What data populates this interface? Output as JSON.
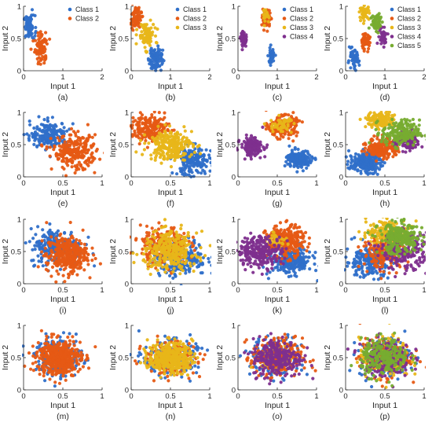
{
  "colors": {
    "Class 1": "#2f6fc9",
    "Class 2": "#e65a14",
    "Class 3": "#e8b619",
    "Class 4": "#7e2f8e",
    "Class 5": "#77ac30"
  },
  "chart_data": [
    {
      "type": "scatter",
      "caption": "(a)",
      "xlabel": "Input 1",
      "ylabel": "Input 2",
      "xlim": [
        0,
        2
      ],
      "ylim": [
        0,
        1
      ],
      "xticks": [
        "0",
        "1",
        "2"
      ],
      "yticks": [
        "0",
        "0.5",
        "1"
      ],
      "legend": "top-right",
      "series": [
        {
          "name": "Class 1",
          "center": [
            0.15,
            0.68
          ],
          "spread": [
            0.07,
            0.09
          ],
          "n": 80
        },
        {
          "name": "Class 2",
          "center": [
            0.45,
            0.35
          ],
          "spread": [
            0.08,
            0.12
          ],
          "n": 90
        }
      ]
    },
    {
      "type": "scatter",
      "caption": "(b)",
      "xlabel": "Input 1",
      "ylabel": "Input 2",
      "xlim": [
        0,
        2
      ],
      "ylim": [
        0,
        1
      ],
      "xticks": [
        "0",
        "1",
        "2"
      ],
      "yticks": [
        "0",
        "0.5",
        "1"
      ],
      "legend": "top-right",
      "series": [
        {
          "name": "Class 1",
          "center": [
            0.62,
            0.2
          ],
          "spread": [
            0.09,
            0.1
          ],
          "n": 90
        },
        {
          "name": "Class 2",
          "center": [
            0.12,
            0.82
          ],
          "spread": [
            0.07,
            0.08
          ],
          "n": 80
        },
        {
          "name": "Class 3",
          "center": [
            0.38,
            0.55
          ],
          "spread": [
            0.1,
            0.1
          ],
          "n": 90
        }
      ]
    },
    {
      "type": "scatter",
      "caption": "(c)",
      "xlabel": "Input 1",
      "ylabel": "Input 2",
      "xlim": [
        0,
        2
      ],
      "ylim": [
        0,
        1
      ],
      "xticks": [
        "0",
        "1",
        "2"
      ],
      "yticks": [
        "0",
        "0.5",
        "1"
      ],
      "legend": "top-right",
      "series": [
        {
          "name": "Class 1",
          "center": [
            0.85,
            0.22
          ],
          "spread": [
            0.04,
            0.06
          ],
          "n": 50
        },
        {
          "name": "Class 2",
          "center": [
            0.72,
            0.8
          ],
          "spread": [
            0.05,
            0.07
          ],
          "n": 60
        },
        {
          "name": "Class 3",
          "center": [
            0.72,
            0.85
          ],
          "spread": [
            0.04,
            0.05
          ],
          "n": 20
        },
        {
          "name": "Class 4",
          "center": [
            0.15,
            0.48
          ],
          "spread": [
            0.04,
            0.06
          ],
          "n": 50
        }
      ]
    },
    {
      "type": "scatter",
      "caption": "(d)",
      "xlabel": "Input 1",
      "ylabel": "Input 2",
      "xlim": [
        0,
        2
      ],
      "ylim": [
        0,
        1
      ],
      "xticks": [
        "0",
        "1",
        "2"
      ],
      "yticks": [
        "0",
        "0.5",
        "1"
      ],
      "legend": "top-right",
      "series": [
        {
          "name": "Class 1",
          "center": [
            0.2,
            0.17
          ],
          "spread": [
            0.07,
            0.07
          ],
          "n": 60
        },
        {
          "name": "Class 2",
          "center": [
            0.5,
            0.45
          ],
          "spread": [
            0.06,
            0.06
          ],
          "n": 60
        },
        {
          "name": "Class 3",
          "center": [
            0.48,
            0.9
          ],
          "spread": [
            0.06,
            0.05
          ],
          "n": 50
        },
        {
          "name": "Class 4",
          "center": [
            0.95,
            0.55
          ],
          "spread": [
            0.06,
            0.07
          ],
          "n": 40
        },
        {
          "name": "Class 5",
          "center": [
            0.8,
            0.75
          ],
          "spread": [
            0.08,
            0.08
          ],
          "n": 60
        }
      ]
    },
    {
      "type": "scatter",
      "caption": "(e)",
      "xlabel": "Input 1",
      "ylabel": "Input 2",
      "xlim": [
        0,
        1
      ],
      "ylim": [
        0,
        1
      ],
      "xticks": [
        "0",
        "0.5",
        "1"
      ],
      "yticks": [
        "0",
        "0.5",
        "1"
      ],
      "series": [
        {
          "name": "Class 1",
          "center": [
            0.33,
            0.65
          ],
          "spread": [
            0.12,
            0.1
          ],
          "n": 200
        },
        {
          "name": "Class 2",
          "center": [
            0.65,
            0.38
          ],
          "spread": [
            0.14,
            0.13
          ],
          "n": 250
        }
      ]
    },
    {
      "type": "scatter",
      "caption": "(f)",
      "xlabel": "Input 1",
      "ylabel": "Input 2",
      "xlim": [
        0,
        1
      ],
      "ylim": [
        0,
        1
      ],
      "xticks": [
        "0",
        "0.5",
        "1"
      ],
      "yticks": [
        "0",
        "0.5",
        "1"
      ],
      "series": [
        {
          "name": "Class 1",
          "center": [
            0.78,
            0.25
          ],
          "spread": [
            0.12,
            0.11
          ],
          "n": 200
        },
        {
          "name": "Class 2",
          "center": [
            0.25,
            0.75
          ],
          "spread": [
            0.12,
            0.1
          ],
          "n": 200
        },
        {
          "name": "Class 3",
          "center": [
            0.5,
            0.5
          ],
          "spread": [
            0.14,
            0.12
          ],
          "n": 250
        }
      ]
    },
    {
      "type": "scatter",
      "caption": "(g)",
      "xlabel": "Input 1",
      "ylabel": "Input 2",
      "xlim": [
        0,
        1
      ],
      "ylim": [
        0,
        1
      ],
      "xticks": [
        "0",
        "0.5",
        "1"
      ],
      "yticks": [
        "0",
        "0.5",
        "1"
      ],
      "series": [
        {
          "name": "Class 1",
          "center": [
            0.78,
            0.27
          ],
          "spread": [
            0.08,
            0.07
          ],
          "n": 180
        },
        {
          "name": "Class 2",
          "center": [
            0.57,
            0.78
          ],
          "spread": [
            0.09,
            0.08
          ],
          "n": 200
        },
        {
          "name": "Class 3",
          "center": [
            0.55,
            0.8
          ],
          "spread": [
            0.07,
            0.06
          ],
          "n": 50
        },
        {
          "name": "Class 4",
          "center": [
            0.18,
            0.47
          ],
          "spread": [
            0.07,
            0.07
          ],
          "n": 150
        }
      ]
    },
    {
      "type": "scatter",
      "caption": "(h)",
      "xlabel": "Input 1",
      "ylabel": "Input 2",
      "xlim": [
        0,
        1
      ],
      "ylim": [
        0,
        1
      ],
      "xticks": [
        "0",
        "0.5",
        "1"
      ],
      "yticks": [
        "0",
        "0.5",
        "1"
      ],
      "series": [
        {
          "name": "Class 1",
          "center": [
            0.25,
            0.22
          ],
          "spread": [
            0.1,
            0.08
          ],
          "n": 200
        },
        {
          "name": "Class 2",
          "center": [
            0.48,
            0.45
          ],
          "spread": [
            0.1,
            0.08
          ],
          "n": 200
        },
        {
          "name": "Class 3",
          "center": [
            0.45,
            0.88
          ],
          "spread": [
            0.09,
            0.06
          ],
          "n": 150
        },
        {
          "name": "Class 4",
          "center": [
            0.8,
            0.55
          ],
          "spread": [
            0.08,
            0.08
          ],
          "n": 120
        },
        {
          "name": "Class 5",
          "center": [
            0.7,
            0.68
          ],
          "spread": [
            0.12,
            0.1
          ],
          "n": 200
        }
      ]
    },
    {
      "type": "scatter",
      "caption": "(i)",
      "xlabel": "Input 1",
      "ylabel": "Input 2",
      "xlim": [
        0,
        1
      ],
      "ylim": [
        0,
        1
      ],
      "xticks": [
        "0",
        "0.5",
        "1"
      ],
      "yticks": [
        "0",
        "0.5",
        "1"
      ],
      "series": [
        {
          "name": "Class 1",
          "center": [
            0.42,
            0.58
          ],
          "spread": [
            0.17,
            0.14
          ],
          "n": 250
        },
        {
          "name": "Class 2",
          "center": [
            0.55,
            0.45
          ],
          "spread": [
            0.13,
            0.14
          ],
          "n": 350
        }
      ]
    },
    {
      "type": "scatter",
      "caption": "(j)",
      "xlabel": "Input 1",
      "ylabel": "Input 2",
      "xlim": [
        0,
        1
      ],
      "ylim": [
        0,
        1
      ],
      "xticks": [
        "0",
        "0.5",
        "1"
      ],
      "yticks": [
        "0",
        "0.5",
        "1"
      ],
      "series": [
        {
          "name": "Class 1",
          "center": [
            0.62,
            0.4
          ],
          "spread": [
            0.17,
            0.14
          ],
          "n": 250
        },
        {
          "name": "Class 2",
          "center": [
            0.42,
            0.6
          ],
          "spread": [
            0.15,
            0.14
          ],
          "n": 250
        },
        {
          "name": "Class 3",
          "center": [
            0.5,
            0.5
          ],
          "spread": [
            0.17,
            0.15
          ],
          "n": 300
        }
      ]
    },
    {
      "type": "scatter",
      "caption": "(k)",
      "xlabel": "Input 1",
      "ylabel": "Input 2",
      "xlim": [
        0,
        1
      ],
      "ylim": [
        0,
        1
      ],
      "xticks": [
        "0",
        "0.5",
        "1"
      ],
      "yticks": [
        "0",
        "0.5",
        "1"
      ],
      "series": [
        {
          "name": "Class 1",
          "center": [
            0.68,
            0.35
          ],
          "spread": [
            0.13,
            0.1
          ],
          "n": 250
        },
        {
          "name": "Class 2",
          "center": [
            0.6,
            0.65
          ],
          "spread": [
            0.12,
            0.12
          ],
          "n": 300
        },
        {
          "name": "Class 3",
          "center": [
            0.5,
            0.7
          ],
          "spread": [
            0.06,
            0.06
          ],
          "n": 30
        },
        {
          "name": "Class 4",
          "center": [
            0.28,
            0.5
          ],
          "spread": [
            0.14,
            0.12
          ],
          "n": 250
        }
      ]
    },
    {
      "type": "scatter",
      "caption": "(l)",
      "xlabel": "Input 1",
      "ylabel": "Input 2",
      "xlim": [
        0,
        1
      ],
      "ylim": [
        0,
        1
      ],
      "xticks": [
        "0",
        "0.5",
        "1"
      ],
      "yticks": [
        "0",
        "0.5",
        "1"
      ],
      "series": [
        {
          "name": "Class 1",
          "center": [
            0.3,
            0.35
          ],
          "spread": [
            0.15,
            0.12
          ],
          "n": 220
        },
        {
          "name": "Class 2",
          "center": [
            0.5,
            0.48
          ],
          "spread": [
            0.14,
            0.12
          ],
          "n": 220
        },
        {
          "name": "Class 3",
          "center": [
            0.55,
            0.8
          ],
          "spread": [
            0.14,
            0.1
          ],
          "n": 200
        },
        {
          "name": "Class 4",
          "center": [
            0.75,
            0.5
          ],
          "spread": [
            0.15,
            0.14
          ],
          "n": 200
        },
        {
          "name": "Class 5",
          "center": [
            0.7,
            0.7
          ],
          "spread": [
            0.14,
            0.12
          ],
          "n": 250
        }
      ]
    },
    {
      "type": "scatter",
      "caption": "(m)",
      "xlabel": "Input 1",
      "ylabel": "Input 2",
      "xlim": [
        0,
        1
      ],
      "ylim": [
        0,
        1
      ],
      "xticks": [
        "0",
        "0.5",
        "1"
      ],
      "yticks": [
        "0",
        "0.5",
        "1"
      ],
      "series": [
        {
          "name": "Class 1",
          "center": [
            0.45,
            0.5
          ],
          "spread": [
            0.15,
            0.15
          ],
          "n": 200
        },
        {
          "name": "Class 2",
          "center": [
            0.45,
            0.5
          ],
          "spread": [
            0.14,
            0.14
          ],
          "n": 450
        }
      ]
    },
    {
      "type": "scatter",
      "caption": "(n)",
      "xlabel": "Input 1",
      "ylabel": "Input 2",
      "xlim": [
        0,
        1
      ],
      "ylim": [
        0,
        1
      ],
      "xticks": [
        "0",
        "0.5",
        "1"
      ],
      "yticks": [
        "0",
        "0.5",
        "1"
      ],
      "series": [
        {
          "name": "Class 1",
          "center": [
            0.5,
            0.5
          ],
          "spread": [
            0.17,
            0.13
          ],
          "n": 200
        },
        {
          "name": "Class 2",
          "center": [
            0.5,
            0.5
          ],
          "spread": [
            0.16,
            0.13
          ],
          "n": 200
        },
        {
          "name": "Class 3",
          "center": [
            0.5,
            0.5
          ],
          "spread": [
            0.14,
            0.12
          ],
          "n": 350
        }
      ]
    },
    {
      "type": "scatter",
      "caption": "(o)",
      "xlabel": "Input 1",
      "ylabel": "Input 2",
      "xlim": [
        0,
        1
      ],
      "ylim": [
        0,
        1
      ],
      "xticks": [
        "0",
        "0.5",
        "1"
      ],
      "yticks": [
        "0",
        "0.5",
        "1"
      ],
      "series": [
        {
          "name": "Class 1",
          "center": [
            0.5,
            0.5
          ],
          "spread": [
            0.16,
            0.15
          ],
          "n": 200
        },
        {
          "name": "Class 2",
          "center": [
            0.5,
            0.5
          ],
          "spread": [
            0.16,
            0.15
          ],
          "n": 250
        },
        {
          "name": "Class 3",
          "center": [
            0.5,
            0.5
          ],
          "spread": [
            0.1,
            0.1
          ],
          "n": 30
        },
        {
          "name": "Class 4",
          "center": [
            0.5,
            0.5
          ],
          "spread": [
            0.16,
            0.15
          ],
          "n": 250
        }
      ]
    },
    {
      "type": "scatter",
      "caption": "(p)",
      "xlabel": "Input 1",
      "ylabel": "Input 2",
      "xlim": [
        0,
        1
      ],
      "ylim": [
        0,
        1
      ],
      "xticks": [
        "0",
        "0.5",
        "1"
      ],
      "yticks": [
        "0",
        "0.5",
        "1"
      ],
      "series": [
        {
          "name": "Class 1",
          "center": [
            0.5,
            0.5
          ],
          "spread": [
            0.16,
            0.15
          ],
          "n": 180
        },
        {
          "name": "Class 2",
          "center": [
            0.5,
            0.5
          ],
          "spread": [
            0.16,
            0.15
          ],
          "n": 180
        },
        {
          "name": "Class 3",
          "center": [
            0.5,
            0.5
          ],
          "spread": [
            0.16,
            0.15
          ],
          "n": 180
        },
        {
          "name": "Class 4",
          "center": [
            0.5,
            0.5
          ],
          "spread": [
            0.16,
            0.15
          ],
          "n": 180
        },
        {
          "name": "Class 5",
          "center": [
            0.5,
            0.5
          ],
          "spread": [
            0.15,
            0.14
          ],
          "n": 220
        }
      ]
    }
  ]
}
